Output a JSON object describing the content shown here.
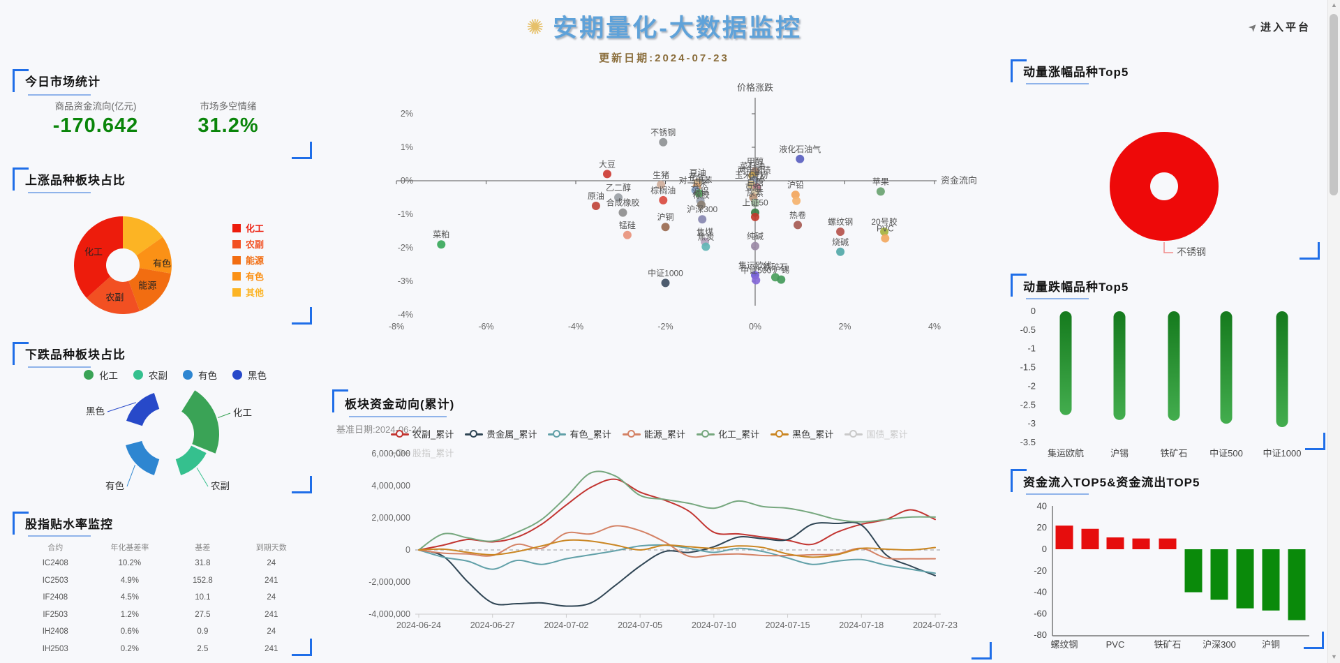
{
  "header": {
    "logo_icon": "atom-icon",
    "title": "安期量化-大数据监控",
    "update_date": "更新日期:2024-07-23",
    "enter_platform": "进入平台"
  },
  "market_stats": {
    "title": "今日市场统计",
    "stats": [
      {
        "label": "商品资金流向(亿元)",
        "value": "-170.642"
      },
      {
        "label": "市场多空情绪",
        "value": "31.2%"
      }
    ]
  },
  "up_sectors": {
    "title": "上涨品种板块占比",
    "chart_data": {
      "type": "pie",
      "items": [
        {
          "name": "化工",
          "value": 36.7,
          "color": "#ed1c0c",
          "label_t": 294,
          "label_r": 46
        },
        {
          "name": "农副",
          "value": 18.9,
          "color": "#f25022",
          "label_t": 194,
          "label_r": 48
        },
        {
          "name": "能源",
          "value": 16.7,
          "color": "#f26d11",
          "label_t": 130,
          "label_r": 46
        },
        {
          "name": "有色",
          "value": 12.5,
          "color": "#fb9116",
          "label_t": 88,
          "label_r": 56
        },
        {
          "name": "其他",
          "value": 15.2,
          "color": "#fcb424",
          "label_t": 0,
          "label_r": 0
        }
      ]
    }
  },
  "down_sectors": {
    "title": "下跌品种板块占比",
    "chart_data": {
      "type": "rose",
      "items": [
        {
          "name": "化工",
          "color": "#3aa356",
          "start": -22,
          "end": 58,
          "outer": 74,
          "label": [
            316,
            88
          ],
          "anchor": "start"
        },
        {
          "name": "农副",
          "color": "#35c08e",
          "start": -72,
          "end": -26,
          "outer": 62,
          "label": [
            284,
            193
          ],
          "anchor": "start"
        },
        {
          "name": "有色",
          "color": "#2e86d1",
          "start": 195,
          "end": 252,
          "outer": 62,
          "label": [
            160,
            193
          ],
          "anchor": "end"
        },
        {
          "name": "黑色",
          "color": "#2749c9",
          "start": 108,
          "end": 162,
          "outer": 62,
          "label": [
            132,
            86
          ],
          "anchor": "end"
        }
      ]
    }
  },
  "basis_table": {
    "title": "股指贴水率监控",
    "columns": [
      "合约",
      "年化基差率",
      "基差",
      "到期天数"
    ],
    "rows": [
      [
        "IC2408",
        "10.2%",
        "31.8",
        "24"
      ],
      [
        "IC2503",
        "4.9%",
        "152.8",
        "241"
      ],
      [
        "IF2408",
        "4.5%",
        "10.1",
        "24"
      ],
      [
        "IF2503",
        "1.2%",
        "27.5",
        "241"
      ],
      [
        "IH2408",
        "0.6%",
        "0.9",
        "24"
      ],
      [
        "IH2503",
        "0.2%",
        "2.5",
        "241"
      ]
    ]
  },
  "scatter": {
    "chart_data": {
      "type": "scatter",
      "xlabel": "资金流向",
      "ylabel": "价格涨跌",
      "xlim": [
        -8,
        4
      ],
      "ylim": [
        -4,
        2
      ],
      "x_ticks": [
        "-8%",
        "-6%",
        "-4%",
        "-2%",
        "0%",
        "2%",
        "4%"
      ],
      "y_ticks": [
        "2%",
        "1%",
        "0%",
        "-1%",
        "-2%",
        "-3%",
        "-4%"
      ],
      "points": [
        {
          "name": "菜粕",
          "x": -7.0,
          "y": -1.9,
          "c": "#3aa85b"
        },
        {
          "name": "原油",
          "x": -3.55,
          "y": -0.75,
          "c": "#c0443a"
        },
        {
          "name": "大豆",
          "x": -3.3,
          "y": 0.2,
          "c": "#cc3b33"
        },
        {
          "name": "乙二醇",
          "x": -3.05,
          "y": -0.5,
          "c": "#9aa0a6"
        },
        {
          "name": "合成橡胶",
          "x": -2.95,
          "y": -0.95,
          "c": "#8e8e8e"
        },
        {
          "name": "锰硅",
          "x": -2.85,
          "y": -1.62,
          "c": "#e8937c"
        },
        {
          "name": "不锈钢",
          "x": -2.05,
          "y": 1.15,
          "c": "#8f9295"
        },
        {
          "name": "生猪",
          "x": -2.1,
          "y": -0.12,
          "c": "#cfae9b"
        },
        {
          "name": "棕榈油",
          "x": -2.05,
          "y": -0.58,
          "c": "#d94b40"
        },
        {
          "name": "沪铜",
          "x": -2.0,
          "y": -1.38,
          "c": "#9a6a50"
        },
        {
          "name": "中证1000",
          "x": -2.0,
          "y": -3.05,
          "c": "#3f4f63"
        },
        {
          "name": "豆油",
          "x": -1.28,
          "y": -0.05,
          "c": "#d2b48c"
        },
        {
          "name": "花生",
          "x": -1.3,
          "y": -0.18,
          "c": "#c5956b"
        },
        {
          "name": "对二甲苯",
          "x": -1.33,
          "y": -0.28,
          "c": "#7f9bc4"
        },
        {
          "name": "玉米",
          "x": -1.25,
          "y": -0.38,
          "c": "#4f9e57"
        },
        {
          "name": "沪铝",
          "x": -1.22,
          "y": -0.6,
          "c": "#98a0ac"
        },
        {
          "name": "橡胶",
          "x": -1.2,
          "y": -0.72,
          "c": "#8a7f72"
        },
        {
          "name": "沪深300",
          "x": -1.18,
          "y": -1.15,
          "c": "#8787b0"
        },
        {
          "name": "焦煤",
          "x": -1.12,
          "y": -1.82,
          "c": "#b5a3bd"
        },
        {
          "name": "焦炭",
          "x": -1.1,
          "y": -1.97,
          "c": "#62b5b5"
        },
        {
          "name": "甲醇",
          "x": 0.0,
          "y": 0.28,
          "c": "#a08070"
        },
        {
          "name": "菜籽油",
          "x": -0.06,
          "y": 0.15,
          "c": "#c8a24e"
        },
        {
          "name": "两年国债",
          "x": -0.02,
          "y": 0.02,
          "c": "#8f9bb3"
        },
        {
          "name": "玉米淀粉",
          "x": -0.08,
          "y": -0.12,
          "c": "#d8c08a"
        },
        {
          "name": "PTA",
          "x": 0.04,
          "y": -0.2,
          "c": "#c77b8e"
        },
        {
          "name": "白糖",
          "x": 0.0,
          "y": -0.34,
          "c": "#e0d0b0"
        },
        {
          "name": "豆粕",
          "x": -0.04,
          "y": -0.5,
          "c": "#b89478"
        },
        {
          "name": "尿素",
          "x": 0.0,
          "y": -0.66,
          "c": "#9cb89c"
        },
        {
          "name": "上证50",
          "x": 0.0,
          "y": -0.95,
          "c": "#3a7d44"
        },
        {
          "name": "",
          "x": 0.0,
          "y": -1.08,
          "c": "#c0392b"
        },
        {
          "name": "纯碱",
          "x": 0.0,
          "y": -1.95,
          "c": "#9b8aa6"
        },
        {
          "name": "集运欧线",
          "x": 0.0,
          "y": -2.82,
          "c": "#6f5bd6"
        },
        {
          "name": "中证500",
          "x": 0.02,
          "y": -2.97,
          "c": "#8468d8"
        },
        {
          "name": "沪铅",
          "x": 0.9,
          "y": -0.42,
          "c": "#f2a55c"
        },
        {
          "name": "",
          "x": 0.92,
          "y": -0.6,
          "c": "#f4b26e"
        },
        {
          "name": "热卷",
          "x": 0.95,
          "y": -1.32,
          "c": "#a65a52"
        },
        {
          "name": "液化石油气",
          "x": 1.0,
          "y": 0.65,
          "c": "#5a5fc0"
        },
        {
          "name": "铁矿石",
          "x": 0.45,
          "y": -2.88,
          "c": "#4a9e5c"
        },
        {
          "name": "沪锡",
          "x": 0.58,
          "y": -2.95,
          "c": "#43995a"
        },
        {
          "name": "螺纹钢",
          "x": 1.9,
          "y": -1.52,
          "c": "#b5524c"
        },
        {
          "name": "烧碱",
          "x": 1.9,
          "y": -2.12,
          "c": "#53a8a8"
        },
        {
          "name": "苹果",
          "x": 2.8,
          "y": -0.32,
          "c": "#6aa371"
        },
        {
          "name": "20号胶",
          "x": 2.88,
          "y": -1.52,
          "c": "#a6b23e"
        },
        {
          "name": "PVC",
          "x": 2.9,
          "y": -1.72,
          "c": "#f2a860"
        }
      ]
    }
  },
  "flow_lines": {
    "title": "板块资金动向(累计)",
    "subtitle": "基准日期:2024-06-24",
    "chart_data": {
      "type": "line",
      "x": [
        "2024-06-24",
        "2024-06-25",
        "2024-06-26",
        "2024-06-27",
        "2024-06-28",
        "2024-07-01",
        "2024-07-02",
        "2024-07-03",
        "2024-07-04",
        "2024-07-05",
        "2024-07-08",
        "2024-07-09",
        "2024-07-10",
        "2024-07-11",
        "2024-07-12",
        "2024-07-15",
        "2024-07-16",
        "2024-07-17",
        "2024-07-18",
        "2024-07-19",
        "2024-07-22",
        "2024-07-23"
      ],
      "x_tick_indices": [
        0,
        3,
        6,
        9,
        12,
        15,
        18,
        21
      ],
      "y_ticks": [
        "6,000,000",
        "4,000,000",
        "2,000,000",
        "0",
        "-2,000,000",
        "-4,000,000"
      ],
      "ylim": [
        -4000000,
        6000000
      ],
      "series": [
        {
          "name": "农副_累计",
          "color": "#c23531",
          "enabled": true,
          "values": [
            0,
            300000,
            650000,
            500000,
            800000,
            1600000,
            2800000,
            3900000,
            4400000,
            3600000,
            3100000,
            2400000,
            1100000,
            1000000,
            800000,
            600000,
            350000,
            1100000,
            1600000,
            1900000,
            2500000,
            1900000
          ]
        },
        {
          "name": "贵金属_累计",
          "color": "#2f4554",
          "enabled": true,
          "values": [
            0,
            -400000,
            -2000000,
            -3300000,
            -3350000,
            -3300000,
            -3500000,
            -3300000,
            -2200000,
            -1000000,
            -100000,
            -150000,
            200000,
            800000,
            700000,
            650000,
            1600000,
            1650000,
            1550000,
            -300000,
            -1000000,
            -1600000
          ]
        },
        {
          "name": "有色_累计",
          "color": "#61a0a8",
          "enabled": true,
          "values": [
            0,
            -450000,
            -700000,
            -1200000,
            -650000,
            -900000,
            -550000,
            -300000,
            -50000,
            250000,
            300000,
            100000,
            -150000,
            100000,
            -100000,
            -500000,
            -900000,
            -700000,
            -600000,
            -950000,
            -1200000,
            -1450000
          ]
        },
        {
          "name": "能源_累计",
          "color": "#d48265",
          "enabled": true,
          "values": [
            0,
            -200000,
            -250000,
            -350000,
            350000,
            100000,
            1050000,
            1000000,
            1500000,
            1200000,
            500000,
            -400000,
            -300000,
            -250000,
            -350000,
            -350000,
            -300000,
            -250000,
            100000,
            -500000,
            -550000,
            -550000
          ]
        },
        {
          "name": "化工_累计",
          "color": "#76a77e",
          "enabled": true,
          "values": [
            0,
            1000000,
            750000,
            550000,
            1100000,
            1900000,
            3300000,
            4800000,
            4600000,
            3400000,
            3150000,
            2900000,
            2600000,
            3050000,
            2700000,
            2600000,
            2300000,
            1900000,
            1750000,
            1900000,
            2050000,
            2050000
          ]
        },
        {
          "name": "黑色_累计",
          "color": "#ca8622",
          "enabled": true,
          "values": [
            0,
            50000,
            -150000,
            -300000,
            -100000,
            250000,
            600000,
            550000,
            300000,
            0,
            300000,
            200000,
            100000,
            250000,
            150000,
            -250000,
            -450000,
            -300000,
            100000,
            50000,
            0,
            150000
          ]
        },
        {
          "name": "国债_累计",
          "color": "#c9c9c9",
          "enabled": false,
          "values": []
        },
        {
          "name": "股指_累计",
          "color": "#c9c9c9",
          "enabled": false,
          "values": []
        }
      ]
    }
  },
  "momentum_up": {
    "title": "动量涨幅品种Top5",
    "chart_data": {
      "type": "pie",
      "items": [
        {
          "name": "不锈钢",
          "value": 100,
          "color": "#ee0909"
        }
      ]
    }
  },
  "momentum_down": {
    "title": "动量跌幅品种Top5",
    "chart_data": {
      "type": "bar",
      "categories": [
        "集运欧航",
        "沪锡",
        "铁矿石",
        "中证500",
        "中证1000"
      ],
      "values": [
        -2.77,
        -2.9,
        -2.92,
        -3.0,
        -3.09
      ],
      "y_ticks": [
        "0",
        "-0.5",
        "-1",
        "-1.5",
        "-2",
        "-2.5",
        "-3",
        "-3.5"
      ],
      "ylim": [
        -3.5,
        0
      ],
      "bar_color_top": "#157a1d",
      "bar_color_bottom": "#43ad4e"
    }
  },
  "flow_top5": {
    "title": "资金流入TOP5&资金流出TOP5",
    "chart_data": {
      "type": "bar",
      "values": [
        22,
        19,
        11,
        10,
        10,
        -40,
        -47,
        -55,
        -57,
        -66
      ],
      "x_labels": [
        {
          "text": "螺纹钢",
          "bar": 0
        },
        {
          "text": "PVC",
          "bar": 2
        },
        {
          "text": "铁矿石",
          "bar": 4
        },
        {
          "text": "沪深300",
          "bar": 6
        },
        {
          "text": "沪铜",
          "bar": 8
        }
      ],
      "y_ticks": [
        "40",
        "20",
        "0",
        "-20",
        "-40",
        "-60",
        "-80"
      ],
      "ylim": [
        -80,
        40
      ],
      "pos_color": "#e60d0d",
      "neg_color": "#0a8a0a"
    }
  }
}
